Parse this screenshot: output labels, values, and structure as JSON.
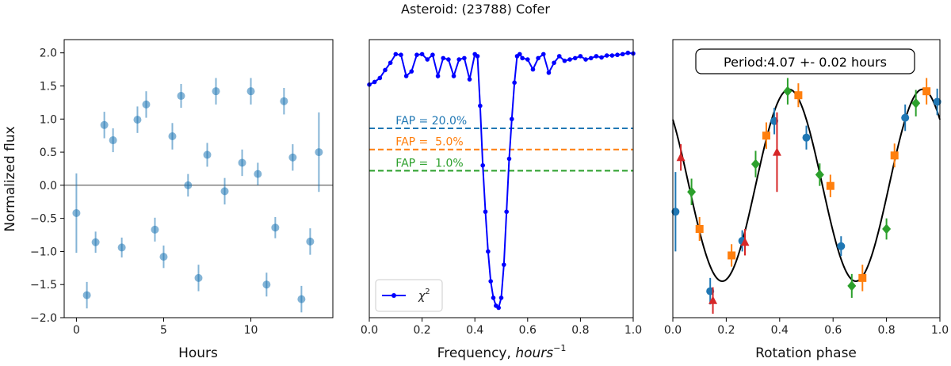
{
  "title": "Asteroid: (23788) Cofer",
  "colors": {
    "tab_blue": "#1f77b4",
    "tab_orange": "#ff7f0e",
    "tab_green": "#2ca02c",
    "tab_red": "#d62728",
    "chi": "#0000ff",
    "black": "#000000"
  },
  "chart_data": [
    {
      "type": "scatter",
      "name": "lightcurve",
      "xlabel": "Hours",
      "ylabel": "Normalized flux",
      "xlim": [
        -0.7,
        14.7
      ],
      "ylim": [
        -2.0,
        2.2
      ],
      "xticks": [
        0,
        5,
        10
      ],
      "yticks": [
        -2.0,
        -1.5,
        -1.0,
        -0.5,
        0.0,
        0.5,
        1.0,
        1.5,
        2.0
      ],
      "hline": 0.0,
      "points": [
        {
          "x": 0.0,
          "y": -0.42,
          "err": 0.6
        },
        {
          "x": 0.6,
          "y": -1.66,
          "err": 0.2
        },
        {
          "x": 1.1,
          "y": -0.86,
          "err": 0.16
        },
        {
          "x": 1.6,
          "y": 0.91,
          "err": 0.2
        },
        {
          "x": 2.1,
          "y": 0.68,
          "err": 0.18
        },
        {
          "x": 2.6,
          "y": -0.94,
          "err": 0.15
        },
        {
          "x": 3.5,
          "y": 0.99,
          "err": 0.2
        },
        {
          "x": 4.0,
          "y": 1.22,
          "err": 0.2
        },
        {
          "x": 4.5,
          "y": -0.67,
          "err": 0.18
        },
        {
          "x": 5.0,
          "y": -1.08,
          "err": 0.17
        },
        {
          "x": 5.5,
          "y": 0.74,
          "err": 0.2
        },
        {
          "x": 6.0,
          "y": 1.35,
          "err": 0.18
        },
        {
          "x": 6.4,
          "y": 0.0,
          "err": 0.17
        },
        {
          "x": 7.0,
          "y": -1.4,
          "err": 0.2
        },
        {
          "x": 7.5,
          "y": 0.46,
          "err": 0.18
        },
        {
          "x": 8.0,
          "y": 1.42,
          "err": 0.2
        },
        {
          "x": 8.5,
          "y": -0.09,
          "err": 0.2
        },
        {
          "x": 9.5,
          "y": 0.34,
          "err": 0.2
        },
        {
          "x": 10.0,
          "y": 1.42,
          "err": 0.2
        },
        {
          "x": 10.4,
          "y": 0.17,
          "err": 0.17
        },
        {
          "x": 10.9,
          "y": -1.5,
          "err": 0.18
        },
        {
          "x": 11.4,
          "y": -0.64,
          "err": 0.16
        },
        {
          "x": 11.9,
          "y": 1.27,
          "err": 0.2
        },
        {
          "x": 12.4,
          "y": 0.42,
          "err": 0.2
        },
        {
          "x": 12.9,
          "y": -1.72,
          "err": 0.2
        },
        {
          "x": 13.4,
          "y": -0.85,
          "err": 0.2
        },
        {
          "x": 13.9,
          "y": 0.5,
          "err": 0.6
        }
      ]
    },
    {
      "type": "line",
      "name": "periodogram",
      "xlabel_main": "Frequency, ",
      "xlabel_italic": "hours",
      "xlabel_sup": "−1",
      "xlim": [
        0.0,
        1.0
      ],
      "ylim": [
        -2.0,
        2.2
      ],
      "xticks": [
        0.0,
        0.2,
        0.4,
        0.6,
        0.8,
        1.0
      ],
      "legend": {
        "label": "χ",
        "sup": "2",
        "position": "lower-left"
      },
      "fap": [
        {
          "label": "FAP = 20.0%",
          "y": 0.86,
          "color": "#1f77b4"
        },
        {
          "label": "FAP =  5.0%",
          "y": 0.54,
          "color": "#ff7f0e"
        },
        {
          "label": "FAP =  1.0%",
          "y": 0.22,
          "color": "#2ca02c"
        }
      ],
      "x": [
        0.0,
        0.02,
        0.04,
        0.06,
        0.08,
        0.1,
        0.12,
        0.14,
        0.16,
        0.18,
        0.2,
        0.22,
        0.24,
        0.26,
        0.28,
        0.3,
        0.32,
        0.34,
        0.36,
        0.38,
        0.4,
        0.41,
        0.42,
        0.43,
        0.44,
        0.45,
        0.46,
        0.47,
        0.48,
        0.49,
        0.5,
        0.51,
        0.52,
        0.53,
        0.54,
        0.55,
        0.56,
        0.57,
        0.58,
        0.6,
        0.62,
        0.64,
        0.66,
        0.68,
        0.7,
        0.72,
        0.74,
        0.76,
        0.78,
        0.8,
        0.82,
        0.84,
        0.86,
        0.88,
        0.9,
        0.92,
        0.94,
        0.96,
        0.98,
        1.0
      ],
      "y": [
        1.52,
        1.56,
        1.62,
        1.74,
        1.85,
        1.98,
        1.97,
        1.65,
        1.72,
        1.97,
        1.98,
        1.9,
        1.97,
        1.65,
        1.92,
        1.9,
        1.65,
        1.9,
        1.92,
        1.6,
        1.98,
        1.95,
        1.2,
        0.3,
        -0.4,
        -1.0,
        -1.45,
        -1.7,
        -1.82,
        -1.85,
        -1.7,
        -1.2,
        -0.4,
        0.4,
        1.0,
        1.55,
        1.95,
        1.98,
        1.92,
        1.9,
        1.75,
        1.92,
        1.98,
        1.7,
        1.85,
        1.95,
        1.88,
        1.9,
        1.92,
        1.95,
        1.9,
        1.92,
        1.95,
        1.93,
        1.96,
        1.96,
        1.97,
        1.98,
        2.0,
        1.99
      ]
    },
    {
      "type": "scatter",
      "name": "phased",
      "xlabel": "Rotation phase",
      "xlim": [
        0.0,
        1.0
      ],
      "ylim": [
        -2.0,
        2.2
      ],
      "xticks": [
        0.0,
        0.2,
        0.4,
        0.6,
        0.8,
        1.0
      ],
      "annotation": "Period:4.07 +- 0.02 hours",
      "model": {
        "mean": 0.0,
        "amp": 1.45,
        "phase0": 0.185,
        "cycles": 2
      },
      "series": [
        {
          "name": "night1",
          "marker": "circle",
          "color": "#1f77b4",
          "points": [
            [
              0.01,
              -0.4,
              0.6
            ],
            [
              0.14,
              -1.6,
              0.2
            ],
            [
              0.26,
              -0.84,
              0.16
            ],
            [
              0.38,
              0.97,
              0.2
            ],
            [
              0.5,
              0.72,
              0.18
            ],
            [
              0.63,
              -0.92,
              0.15
            ],
            [
              0.87,
              1.02,
              0.2
            ],
            [
              0.99,
              1.26,
              0.2
            ]
          ]
        },
        {
          "name": "night2",
          "marker": "square",
          "color": "#ff7f0e",
          "points": [
            [
              0.1,
              -0.66,
              0.18
            ],
            [
              0.22,
              -1.06,
              0.17
            ],
            [
              0.35,
              0.75,
              0.2
            ],
            [
              0.47,
              1.36,
              0.18
            ],
            [
              0.59,
              -0.01,
              0.17
            ],
            [
              0.71,
              -1.4,
              0.2
            ],
            [
              0.83,
              0.45,
              0.18
            ],
            [
              0.95,
              1.42,
              0.2
            ]
          ]
        },
        {
          "name": "night3",
          "marker": "diamond",
          "color": "#2ca02c",
          "points": [
            [
              0.07,
              -0.1,
              0.2
            ],
            [
              0.31,
              0.32,
              0.2
            ],
            [
              0.43,
              1.42,
              0.2
            ],
            [
              0.55,
              0.16,
              0.17
            ],
            [
              0.67,
              -1.52,
              0.18
            ],
            [
              0.8,
              -0.66,
              0.16
            ],
            [
              0.91,
              1.24,
              0.2
            ]
          ]
        },
        {
          "name": "night4",
          "marker": "triangle",
          "color": "#d62728",
          "points": [
            [
              0.03,
              0.42,
              0.2
            ],
            [
              0.15,
              -1.74,
              0.2
            ],
            [
              0.27,
              -0.86,
              0.2
            ],
            [
              0.39,
              0.5,
              0.6
            ]
          ]
        }
      ]
    }
  ]
}
